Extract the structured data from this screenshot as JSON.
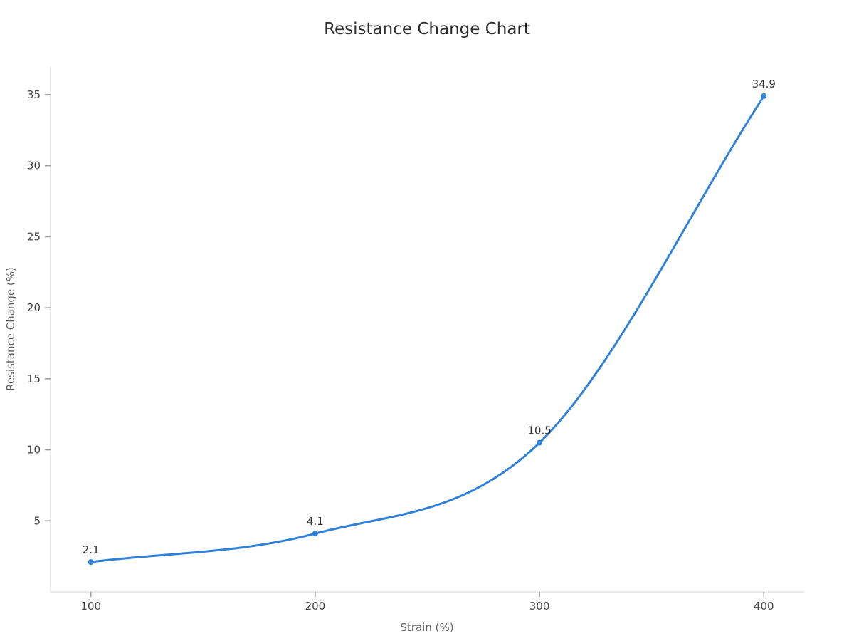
{
  "chart_data": {
    "type": "line",
    "title": "Resistance Change Chart",
    "xlabel": "Strain (%)",
    "ylabel": "Resistance Change (%)",
    "x": [
      100,
      200,
      300,
      400
    ],
    "series": [
      {
        "name": "Resistance Change",
        "values": [
          2.1,
          4.1,
          10.5,
          34.9
        ],
        "point_labels": [
          "2.1",
          "4.1",
          "10.5",
          "34.9"
        ]
      }
    ],
    "x_ticks": [
      "100",
      "200",
      "300",
      "400"
    ],
    "x_tick_values": [
      100,
      200,
      300,
      400
    ],
    "y_ticks": [
      "5",
      "10",
      "15",
      "20",
      "25",
      "30",
      "35"
    ],
    "y_tick_values": [
      5,
      10,
      15,
      20,
      25,
      30,
      35
    ],
    "xlim": [
      82,
      418
    ],
    "ylim": [
      0,
      37
    ],
    "grid": false,
    "smooth": true,
    "legend": "none",
    "colors": {
      "line": "#2f82d8",
      "marker": "#2f82d8",
      "axis_line": "#e2e2e7",
      "tick_mark": "#9a9a9a",
      "tick_label": "#444444",
      "axis_title": "#636363",
      "title": "#2d2d2d",
      "point_label": "#2f2f2f",
      "background": "#ffffff"
    }
  }
}
